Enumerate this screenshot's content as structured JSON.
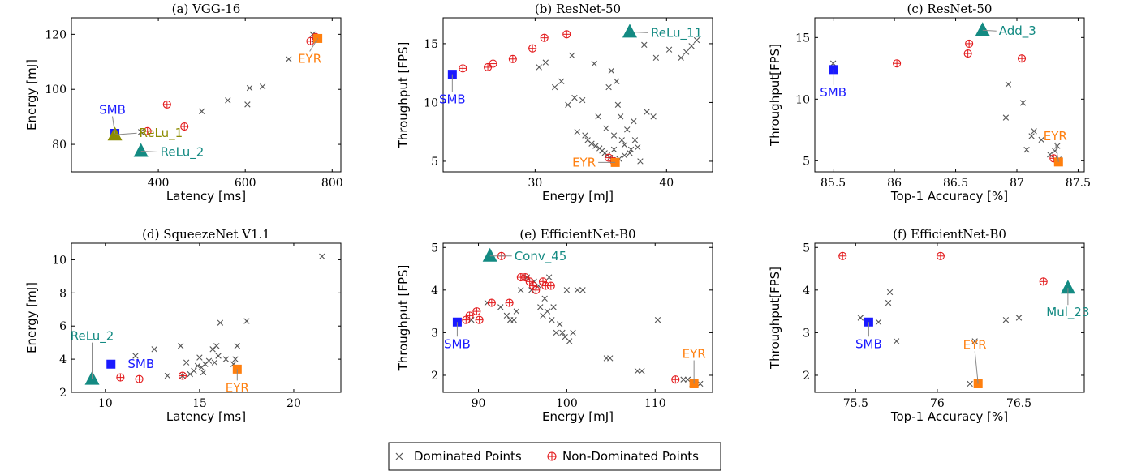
{
  "colors": {
    "dominated": "#555555",
    "non_dominated": "#e31a1c",
    "smb": "#1a1aff",
    "eyr": "#ff7f0e",
    "teal": "#138a82",
    "olive": "#8c8c00"
  },
  "legend": {
    "dominated": "Dominated Points",
    "non_dominated": "Non-Dominated Points"
  },
  "chart_data": [
    {
      "type": "scatter",
      "title": "(a) VGG-16",
      "xlabel": "Latency [ms]",
      "ylabel": "Energy [mJ]",
      "xlim": [
        200,
        820
      ],
      "ylim": [
        70,
        126
      ],
      "xticks": [
        400,
        600,
        800
      ],
      "yticks": [
        80,
        100,
        120
      ],
      "dominated": [
        [
          360,
          84.5
        ],
        [
          500,
          92
        ],
        [
          560,
          96
        ],
        [
          605,
          94.5
        ],
        [
          610,
          100.5
        ],
        [
          640,
          101
        ],
        [
          700,
          111
        ],
        [
          755,
          120
        ],
        [
          760,
          118
        ],
        [
          765,
          118.5
        ]
      ],
      "non_dominated": [
        [
          375,
          84.8
        ],
        [
          420,
          94.5
        ],
        [
          460,
          86.5
        ],
        [
          750,
          117.5
        ],
        [
          762,
          119
        ]
      ],
      "markers": [
        {
          "shape": "square",
          "color": "smb",
          "x": 300,
          "y": 84
        },
        {
          "shape": "triangle",
          "color": "olive",
          "x": 300,
          "y": 83.5
        },
        {
          "shape": "triangle",
          "color": "teal",
          "x": 360,
          "y": 77.5
        },
        {
          "shape": "square",
          "color": "eyr",
          "x": 767,
          "y": 118.5
        }
      ],
      "annotations": [
        {
          "text": "SMB",
          "color": "smb",
          "x": 300,
          "y": 84,
          "tx": -3,
          "ty": -24,
          "anchor": "middle",
          "line": true
        },
        {
          "text": "ReLu_1",
          "color": "olive",
          "x": 300,
          "y": 83.5,
          "tx": 30,
          "ty": 3,
          "anchor": "start",
          "line": true
        },
        {
          "text": "ReLu_2",
          "color": "teal",
          "x": 360,
          "y": 77.5,
          "tx": 24,
          "ty": 6,
          "anchor": "start",
          "line": true
        },
        {
          "text": "EYR",
          "color": "eyr",
          "x": 767,
          "y": 118.5,
          "tx": -10,
          "ty": 30,
          "anchor": "middle",
          "line": true
        }
      ]
    },
    {
      "type": "scatter",
      "title": "(b) ResNet-50",
      "xlabel": "Energy [mJ]",
      "ylabel": "Throughput [FPS]",
      "xlim": [
        23,
        43.5
      ],
      "ylim": [
        4.1,
        17.2
      ],
      "xticks": [
        30,
        40
      ],
      "yticks": [
        5,
        10,
        15
      ],
      "dominated": [
        [
          30.3,
          13
        ],
        [
          30.8,
          13.4
        ],
        [
          31.5,
          11.3
        ],
        [
          32.0,
          11.8
        ],
        [
          32.5,
          9.8
        ],
        [
          32.8,
          14.0
        ],
        [
          33.0,
          10.4
        ],
        [
          33.2,
          7.5
        ],
        [
          33.6,
          10.2
        ],
        [
          33.8,
          7.2
        ],
        [
          34.0,
          6.8
        ],
        [
          34.3,
          6.5
        ],
        [
          34.5,
          13.3
        ],
        [
          34.6,
          6.3
        ],
        [
          34.8,
          8.8
        ],
        [
          34.9,
          6.1
        ],
        [
          35.1,
          5.9
        ],
        [
          35.3,
          5.7
        ],
        [
          35.4,
          7.8
        ],
        [
          35.5,
          5.5
        ],
        [
          35.6,
          11.3
        ],
        [
          35.7,
          5.3
        ],
        [
          35.8,
          12.7
        ],
        [
          35.9,
          5.1
        ],
        [
          36.0,
          7.2
        ],
        [
          36.2,
          11.8
        ],
        [
          36.3,
          9.8
        ],
        [
          36.4,
          5.2
        ],
        [
          36.5,
          8.8
        ],
        [
          36.6,
          6.8
        ],
        [
          36.8,
          5.5
        ],
        [
          37.0,
          7.7
        ],
        [
          37.2,
          5.7
        ],
        [
          37.5,
          8.4
        ],
        [
          37.6,
          6.8
        ],
        [
          37.8,
          6.2
        ],
        [
          38.0,
          5.0
        ],
        [
          38.3,
          14.9
        ],
        [
          38.5,
          9.2
        ],
        [
          39.0,
          8.8
        ],
        [
          39.2,
          13.8
        ],
        [
          40.2,
          14.5
        ],
        [
          41.1,
          13.8
        ],
        [
          41.5,
          14.3
        ],
        [
          41.9,
          14.8
        ],
        [
          42.3,
          15.3
        ],
        [
          36.0,
          6.0
        ],
        [
          36.8,
          6.4
        ],
        [
          37.3,
          6.0
        ]
      ],
      "non_dominated": [
        [
          24.5,
          12.9
        ],
        [
          26.4,
          13.0
        ],
        [
          26.8,
          13.3
        ],
        [
          28.3,
          13.7
        ],
        [
          29.8,
          14.6
        ],
        [
          30.7,
          15.5
        ],
        [
          32.4,
          15.8
        ],
        [
          35.6,
          5.3
        ],
        [
          36.0,
          5.0
        ]
      ],
      "markers": [
        {
          "shape": "square",
          "color": "smb",
          "x": 23.7,
          "y": 12.4
        },
        {
          "shape": "triangle",
          "color": "teal",
          "x": 37.2,
          "y": 16.0
        },
        {
          "shape": "square",
          "color": "eyr",
          "x": 36.1,
          "y": 4.9
        }
      ],
      "annotations": [
        {
          "text": "SMB",
          "color": "smb",
          "x": 23.7,
          "y": 12.4,
          "tx": 0,
          "ty": 36,
          "anchor": "middle",
          "line": true
        },
        {
          "text": "ReLu_11",
          "color": "teal",
          "x": 37.2,
          "y": 16.0,
          "tx": 26,
          "ty": 6,
          "anchor": "start",
          "line": true
        },
        {
          "text": "EYR",
          "color": "eyr",
          "x": 36.1,
          "y": 4.9,
          "tx": -24,
          "ty": 5,
          "anchor": "end",
          "line": true
        }
      ]
    },
    {
      "type": "scatter",
      "title": "(c) ResNet-50",
      "xlabel": "Top-1 Accuracy [%]",
      "ylabel": "Throughput[FPS]",
      "xlim": [
        85.35,
        87.55
      ],
      "ylim": [
        4.1,
        16.6
      ],
      "xticks": [
        85.5,
        86,
        86.5,
        87,
        87.5
      ],
      "yticks": [
        5,
        10,
        15
      ],
      "dominated": [
        [
          85.5,
          12.9
        ],
        [
          86.91,
          8.5
        ],
        [
          86.93,
          11.2
        ],
        [
          87.05,
          9.7
        ],
        [
          87.08,
          5.9
        ],
        [
          87.12,
          7.0
        ],
        [
          87.14,
          7.4
        ],
        [
          87.2,
          6.7
        ],
        [
          87.27,
          5.5
        ],
        [
          87.31,
          5.8
        ],
        [
          87.33,
          6.2
        ],
        [
          87.34,
          5.1
        ]
      ],
      "non_dominated": [
        [
          86.02,
          12.9
        ],
        [
          86.6,
          13.7
        ],
        [
          86.61,
          14.5
        ],
        [
          87.04,
          13.3
        ],
        [
          87.3,
          5.2
        ]
      ],
      "markers": [
        {
          "shape": "square",
          "color": "smb",
          "x": 85.5,
          "y": 12.4
        },
        {
          "shape": "triangle",
          "color": "teal",
          "x": 86.72,
          "y": 15.6
        },
        {
          "shape": "square",
          "color": "eyr",
          "x": 87.34,
          "y": 4.9
        }
      ],
      "annotations": [
        {
          "text": "SMB",
          "color": "smb",
          "x": 85.5,
          "y": 12.4,
          "tx": 0,
          "ty": 33,
          "anchor": "middle",
          "line": true
        },
        {
          "text": "Add_3",
          "color": "teal",
          "x": 86.72,
          "y": 15.6,
          "tx": 20,
          "ty": 6,
          "anchor": "start",
          "line": true
        },
        {
          "text": "EYR",
          "color": "eyr",
          "x": 87.34,
          "y": 4.9,
          "tx": -4,
          "ty": -27,
          "anchor": "middle",
          "line": true
        }
      ]
    },
    {
      "type": "scatter",
      "title": "(d) SqueezeNet V1.1",
      "xlabel": "Latency [ms]",
      "ylabel": "Energy [mJ]",
      "xlim": [
        8.2,
        22.5
      ],
      "ylim": [
        2,
        11
      ],
      "xticks": [
        10,
        15,
        20
      ],
      "yticks": [
        2,
        4,
        6,
        8,
        10
      ],
      "dominated": [
        [
          11.6,
          4.2
        ],
        [
          12.6,
          4.6
        ],
        [
          13.3,
          3.0
        ],
        [
          14.0,
          4.8
        ],
        [
          14.3,
          3.8
        ],
        [
          14.5,
          3.1
        ],
        [
          14.7,
          3.3
        ],
        [
          14.9,
          3.6
        ],
        [
          15.0,
          4.1
        ],
        [
          15.1,
          3.5
        ],
        [
          15.3,
          3.7
        ],
        [
          15.5,
          3.9
        ],
        [
          15.7,
          4.6
        ],
        [
          15.8,
          3.8
        ],
        [
          16.0,
          4.2
        ],
        [
          16.1,
          6.2
        ],
        [
          16.4,
          4.0
        ],
        [
          16.8,
          3.7
        ],
        [
          17.0,
          4.8
        ],
        [
          17.5,
          6.3
        ],
        [
          21.5,
          10.2
        ],
        [
          16.9,
          4.0
        ],
        [
          15.9,
          4.8
        ],
        [
          15.2,
          3.2
        ],
        [
          14.1,
          3.0
        ]
      ],
      "non_dominated": [
        [
          10.8,
          2.9
        ],
        [
          11.8,
          2.8
        ],
        [
          14.1,
          3.0
        ]
      ],
      "markers": [
        {
          "shape": "square",
          "color": "smb",
          "x": 10.3,
          "y": 3.7
        },
        {
          "shape": "triangle",
          "color": "teal",
          "x": 9.3,
          "y": 2.8
        },
        {
          "shape": "square",
          "color": "eyr",
          "x": 17.0,
          "y": 3.4
        }
      ],
      "annotations": [
        {
          "text": "SMB",
          "color": "smb",
          "x": 10.3,
          "y": 3.7,
          "tx": 37,
          "ty": 5,
          "anchor": "middle",
          "line": false
        },
        {
          "text": "ReLu_2",
          "color": "teal",
          "x": 9.3,
          "y": 2.8,
          "tx": 0,
          "ty": -48,
          "anchor": "middle",
          "line": true
        },
        {
          "text": "EYR",
          "color": "eyr",
          "x": 17.0,
          "y": 3.4,
          "tx": 0,
          "ty": 28,
          "anchor": "middle",
          "line": true
        }
      ]
    },
    {
      "type": "scatter",
      "title": "(e) EfficientNet-B0",
      "xlabel": "Energy [mJ]",
      "ylabel": "Throughput [FPS]",
      "xlim": [
        86,
        116.5
      ],
      "ylim": [
        1.6,
        5.1
      ],
      "xticks": [
        90,
        100,
        110
      ],
      "yticks": [
        2,
        3,
        4,
        5
      ],
      "dominated": [
        [
          89.2,
          3.3
        ],
        [
          91.0,
          3.7
        ],
        [
          92.5,
          3.6
        ],
        [
          93.2,
          3.4
        ],
        [
          93.6,
          3.3
        ],
        [
          94.0,
          3.3
        ],
        [
          94.3,
          3.5
        ],
        [
          94.8,
          4.0
        ],
        [
          95.5,
          4.3
        ],
        [
          96.0,
          4.0
        ],
        [
          96.3,
          4.2
        ],
        [
          96.8,
          4.1
        ],
        [
          97.0,
          3.6
        ],
        [
          97.3,
          3.4
        ],
        [
          97.5,
          3.8
        ],
        [
          97.8,
          3.5
        ],
        [
          98.0,
          4.3
        ],
        [
          98.3,
          3.3
        ],
        [
          98.5,
          3.6
        ],
        [
          98.8,
          3.0
        ],
        [
          99.2,
          3.2
        ],
        [
          99.5,
          3.0
        ],
        [
          99.8,
          2.9
        ],
        [
          100.0,
          4.0
        ],
        [
          100.3,
          2.8
        ],
        [
          100.7,
          3.0
        ],
        [
          101.2,
          4.0
        ],
        [
          101.8,
          4.0
        ],
        [
          104.5,
          2.4
        ],
        [
          104.9,
          2.4
        ],
        [
          108.0,
          2.1
        ],
        [
          108.5,
          2.1
        ],
        [
          110.3,
          3.3
        ],
        [
          113.2,
          1.9
        ],
        [
          113.7,
          1.9
        ],
        [
          114.2,
          1.8
        ],
        [
          115.1,
          1.8
        ]
      ],
      "non_dominated": [
        [
          88.6,
          3.3
        ],
        [
          89.0,
          3.4
        ],
        [
          89.8,
          3.5
        ],
        [
          90.1,
          3.3
        ],
        [
          91.5,
          3.7
        ],
        [
          92.6,
          4.8
        ],
        [
          93.5,
          3.7
        ],
        [
          94.8,
          4.3
        ],
        [
          95.3,
          4.3
        ],
        [
          95.8,
          4.2
        ],
        [
          96.2,
          4.1
        ],
        [
          96.5,
          4.0
        ],
        [
          97.3,
          4.2
        ],
        [
          97.6,
          4.1
        ],
        [
          98.2,
          4.1
        ],
        [
          112.3,
          1.9
        ]
      ],
      "markers": [
        {
          "shape": "square",
          "color": "smb",
          "x": 87.6,
          "y": 3.25
        },
        {
          "shape": "triangle",
          "color": "teal",
          "x": 91.3,
          "y": 4.8
        },
        {
          "shape": "square",
          "color": "eyr",
          "x": 114.4,
          "y": 1.8
        }
      ],
      "annotations": [
        {
          "text": "SMB",
          "color": "smb",
          "x": 87.6,
          "y": 3.25,
          "tx": 0,
          "ty": 32,
          "anchor": "middle",
          "line": true
        },
        {
          "text": "Conv_45",
          "color": "teal",
          "x": 91.3,
          "y": 4.8,
          "tx": 30,
          "ty": 5,
          "anchor": "start",
          "line": true
        },
        {
          "text": "EYR",
          "color": "eyr",
          "x": 114.4,
          "y": 1.8,
          "tx": 0,
          "ty": -32,
          "anchor": "middle",
          "line": true
        }
      ]
    },
    {
      "type": "scatter",
      "title": "(f) EfficientNet-B0",
      "xlabel": "Top-1 Accuracy [%]",
      "ylabel": "Throughput[FPS]",
      "xlim": [
        75.25,
        76.9
      ],
      "ylim": [
        1.6,
        5.1
      ],
      "xticks": [
        75.5,
        76,
        76.5
      ],
      "yticks": [
        2,
        3,
        4,
        5
      ],
      "dominated": [
        [
          75.53,
          3.35
        ],
        [
          75.64,
          3.25
        ],
        [
          75.7,
          3.7
        ],
        [
          75.71,
          3.95
        ],
        [
          75.75,
          2.8
        ],
        [
          76.2,
          1.8
        ],
        [
          76.23,
          2.8
        ],
        [
          76.42,
          3.3
        ],
        [
          76.5,
          3.35
        ]
      ],
      "non_dominated": [
        [
          75.42,
          4.8
        ],
        [
          76.02,
          4.8
        ],
        [
          76.65,
          4.2
        ]
      ],
      "markers": [
        {
          "shape": "square",
          "color": "smb",
          "x": 75.58,
          "y": 3.25
        },
        {
          "shape": "triangle",
          "color": "teal",
          "x": 76.8,
          "y": 4.05
        },
        {
          "shape": "square",
          "color": "eyr",
          "x": 76.25,
          "y": 1.8
        }
      ],
      "annotations": [
        {
          "text": "SMB",
          "color": "smb",
          "x": 75.58,
          "y": 3.25,
          "tx": 0,
          "ty": 32,
          "anchor": "middle",
          "line": true
        },
        {
          "text": "Mul_23",
          "color": "teal",
          "x": 76.8,
          "y": 4.05,
          "tx": 0,
          "ty": 35,
          "anchor": "middle",
          "line": true
        },
        {
          "text": "EYR",
          "color": "eyr",
          "x": 76.25,
          "y": 1.8,
          "tx": -4,
          "ty": -43,
          "anchor": "middle",
          "line": true
        }
      ]
    }
  ]
}
